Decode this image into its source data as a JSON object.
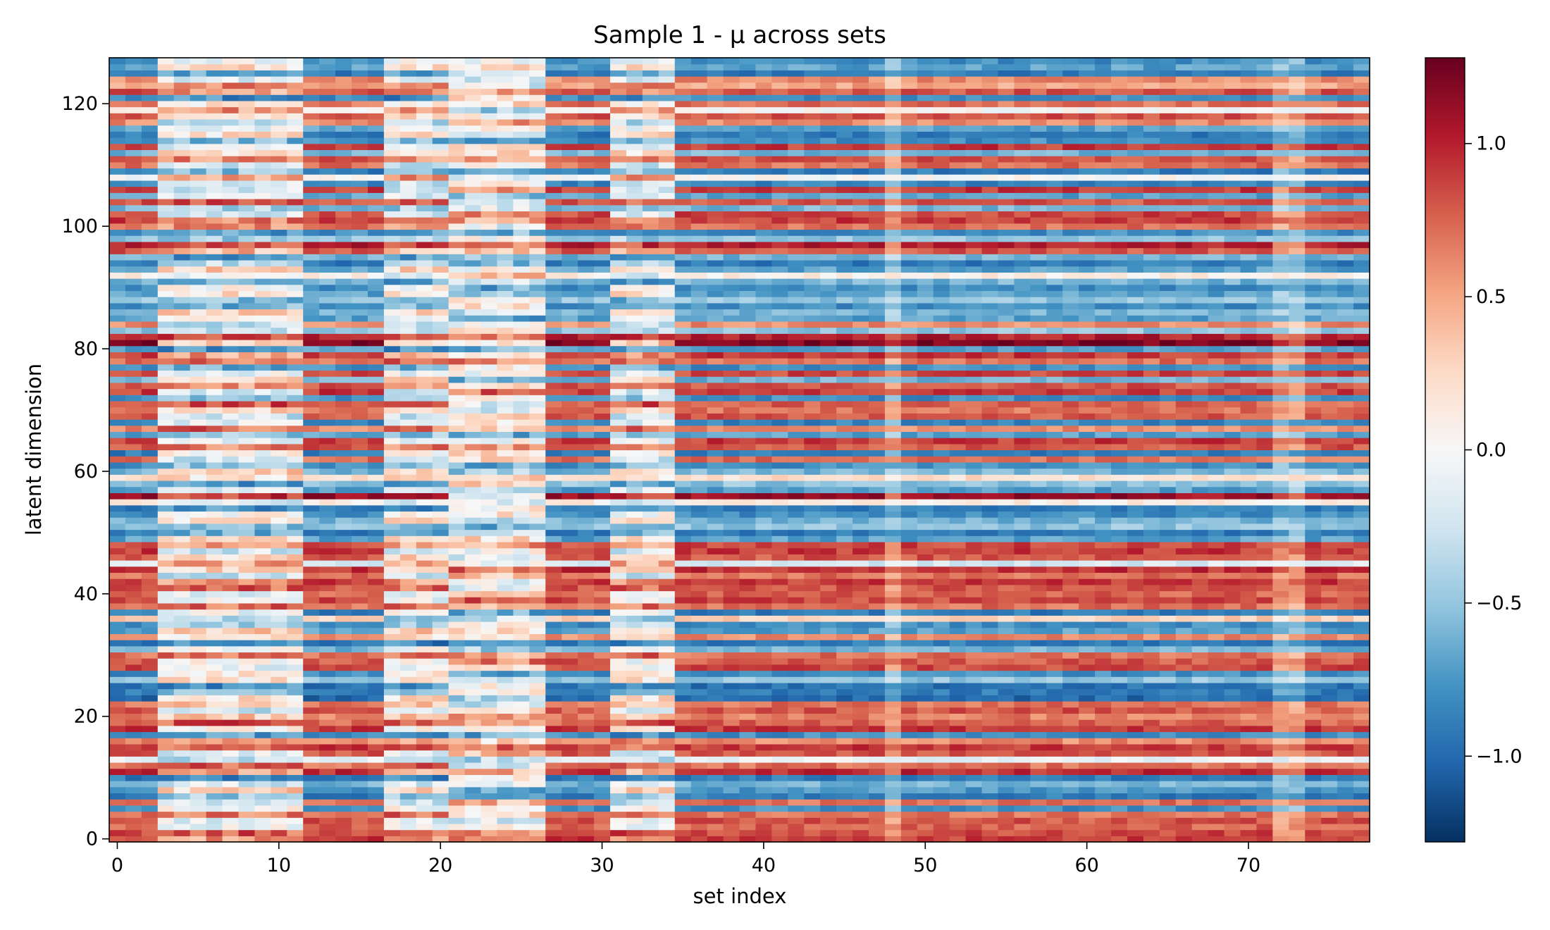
{
  "chart_data": {
    "type": "heatmap",
    "title": "Sample 1 - μ across sets",
    "xlabel": "set index",
    "ylabel": "latent dimension",
    "n_cols": 78,
    "n_rows": 128,
    "xlim": [
      -0.5,
      77.5
    ],
    "ylim": [
      -0.5,
      127.5
    ],
    "x_ticks": [
      0,
      10,
      20,
      30,
      40,
      50,
      60,
      70
    ],
    "x_tick_labels": [
      "0",
      "10",
      "20",
      "30",
      "40",
      "50",
      "60",
      "70"
    ],
    "y_ticks": [
      0,
      20,
      40,
      60,
      80,
      100,
      120
    ],
    "y_tick_labels": [
      "0",
      "20",
      "40",
      "60",
      "80",
      "100",
      "120"
    ],
    "colormap": "RdBu_r",
    "vmin": -1.28,
    "vmax": 1.28,
    "colorbar_ticks": [
      -1.0,
      -0.5,
      0.0,
      0.5,
      1.0
    ],
    "colorbar_tick_labels": [
      "−1.0",
      "−0.5",
      "0.0",
      "0.5",
      "1.0"
    ],
    "colorbar_stops": [
      "#053061",
      "#2166ac",
      "#4393c3",
      "#92c5de",
      "#d1e5f0",
      "#f7f7f7",
      "#fddbc7",
      "#f4a582",
      "#d6604d",
      "#b2182b",
      "#67001f"
    ],
    "column_groups": [
      {
        "start": 0,
        "end": 2,
        "profile": "A"
      },
      {
        "start": 3,
        "end": 11,
        "profile": "B"
      },
      {
        "start": 12,
        "end": 16,
        "profile": "A"
      },
      {
        "start": 17,
        "end": 20,
        "profile": "B"
      },
      {
        "start": 21,
        "end": 26,
        "profile": "C"
      },
      {
        "start": 27,
        "end": 30,
        "profile": "A"
      },
      {
        "start": 31,
        "end": 34,
        "profile": "B"
      },
      {
        "start": 35,
        "end": 47,
        "profile": "A"
      },
      {
        "start": 48,
        "end": 48,
        "profile": "D"
      },
      {
        "start": 49,
        "end": 71,
        "profile": "A"
      },
      {
        "start": 72,
        "end": 73,
        "profile": "D"
      },
      {
        "start": 74,
        "end": 77,
        "profile": "A"
      }
    ],
    "row_profile_A": [
      0.9,
      0.85,
      0.75,
      0.8,
      0.7,
      -0.8,
      0.7,
      -0.9,
      -0.75,
      -0.6,
      -0.9,
      0.95,
      0.7,
      -0.1,
      0.8,
      0.9,
      0.6,
      -0.8,
      0.9,
      0.75,
      0.65,
      0.8,
      0.7,
      -1.0,
      -0.9,
      -0.95,
      -0.5,
      -0.8,
      0.85,
      0.8,
      0.7,
      -0.6,
      -0.9,
      0.6,
      -0.7,
      -0.8,
      0.3,
      -0.9,
      0.7,
      0.85,
      0.75,
      0.8,
      0.9,
      0.7,
      0.95,
      -0.2,
      0.8,
      0.9,
      0.85,
      -0.7,
      -0.9,
      -0.5,
      -0.6,
      -0.8,
      -0.9,
      0.1,
      1.1,
      -0.7,
      -0.5,
      0.2,
      -0.6,
      -0.8,
      0.7,
      -0.9,
      0.8,
      0.9,
      -0.7,
      0.6,
      -0.85,
      0.8,
      0.7,
      0.75,
      -0.8,
      0.9,
      0.8,
      -0.6,
      0.85,
      -0.8,
      0.7,
      0.9,
      -0.7,
      1.2,
      1.0,
      -0.5,
      0.6,
      -0.7,
      -0.6,
      -0.8,
      -0.5,
      -0.7,
      -0.8,
      -0.6,
      0.1,
      -0.7,
      -0.9,
      -0.6,
      0.8,
      1.0,
      -0.5,
      -0.8,
      0.7,
      0.9,
      0.85,
      -0.6,
      0.8,
      -0.7,
      0.9,
      -0.85,
      0.0,
      -0.9,
      0.7,
      0.8,
      -0.6,
      0.9,
      -0.8,
      -0.9,
      -0.7,
      0.6,
      0.8,
      0.0,
      0.7,
      -0.8,
      0.8,
      0.5,
      0.6,
      -0.9,
      -0.7,
      -0.8
    ]
  }
}
